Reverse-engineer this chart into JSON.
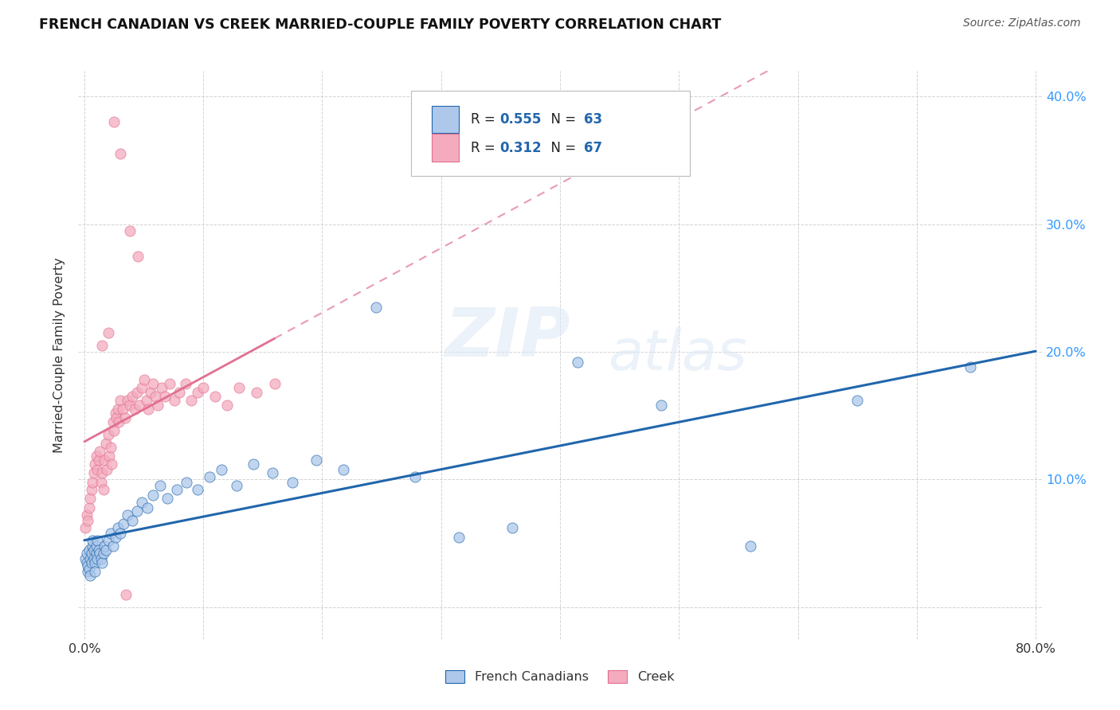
{
  "title": "FRENCH CANADIAN VS CREEK MARRIED-COUPLE FAMILY POVERTY CORRELATION CHART",
  "source": "Source: ZipAtlas.com",
  "ylabel": "Married-Couple Family Poverty",
  "watermark_zip": "ZIP",
  "watermark_atlas": "atlas",
  "xlim": [
    -0.005,
    0.805
  ],
  "ylim": [
    -0.025,
    0.42
  ],
  "french_R": 0.555,
  "french_N": 63,
  "creek_R": 0.312,
  "creek_N": 67,
  "french_color": "#adc8ea",
  "creek_color": "#f4abbe",
  "french_line_color": "#2166ac",
  "creek_line_color": "#e07090",
  "background_color": "#ffffff",
  "grid_color": "#c8c8c8",
  "french_scatter_x": [
    0.001,
    0.002,
    0.002,
    0.003,
    0.003,
    0.004,
    0.004,
    0.005,
    0.005,
    0.006,
    0.006,
    0.007,
    0.007,
    0.008,
    0.008,
    0.009,
    0.009,
    0.01,
    0.01,
    0.011,
    0.011,
    0.012,
    0.013,
    0.014,
    0.015,
    0.016,
    0.017,
    0.018,
    0.02,
    0.022,
    0.024,
    0.026,
    0.028,
    0.03,
    0.033,
    0.036,
    0.04,
    0.044,
    0.048,
    0.053,
    0.058,
    0.064,
    0.07,
    0.078,
    0.086,
    0.095,
    0.105,
    0.115,
    0.128,
    0.142,
    0.158,
    0.175,
    0.195,
    0.218,
    0.245,
    0.278,
    0.315,
    0.36,
    0.415,
    0.485,
    0.56,
    0.65,
    0.745
  ],
  "french_scatter_y": [
    0.038,
    0.042,
    0.035,
    0.028,
    0.032,
    0.03,
    0.045,
    0.025,
    0.038,
    0.042,
    0.035,
    0.048,
    0.052,
    0.045,
    0.038,
    0.035,
    0.028,
    0.042,
    0.048,
    0.038,
    0.052,
    0.045,
    0.042,
    0.038,
    0.035,
    0.042,
    0.048,
    0.045,
    0.052,
    0.058,
    0.048,
    0.055,
    0.062,
    0.058,
    0.065,
    0.072,
    0.068,
    0.075,
    0.082,
    0.078,
    0.088,
    0.095,
    0.085,
    0.092,
    0.098,
    0.092,
    0.102,
    0.108,
    0.095,
    0.112,
    0.105,
    0.098,
    0.115,
    0.108,
    0.235,
    0.102,
    0.055,
    0.062,
    0.192,
    0.158,
    0.048,
    0.162,
    0.188
  ],
  "creek_scatter_x": [
    0.001,
    0.002,
    0.003,
    0.004,
    0.005,
    0.006,
    0.007,
    0.008,
    0.009,
    0.01,
    0.011,
    0.012,
    0.013,
    0.014,
    0.015,
    0.016,
    0.017,
    0.018,
    0.019,
    0.02,
    0.021,
    0.022,
    0.023,
    0.024,
    0.025,
    0.026,
    0.027,
    0.028,
    0.029,
    0.03,
    0.032,
    0.034,
    0.036,
    0.038,
    0.04,
    0.042,
    0.044,
    0.046,
    0.048,
    0.05,
    0.052,
    0.054,
    0.056,
    0.058,
    0.06,
    0.062,
    0.065,
    0.068,
    0.072,
    0.076,
    0.08,
    0.085,
    0.09,
    0.095,
    0.1,
    0.11,
    0.12,
    0.13,
    0.145,
    0.16,
    0.045,
    0.038,
    0.03,
    0.025,
    0.02,
    0.035,
    0.015
  ],
  "creek_scatter_y": [
    0.062,
    0.072,
    0.068,
    0.078,
    0.085,
    0.092,
    0.098,
    0.105,
    0.112,
    0.118,
    0.108,
    0.115,
    0.122,
    0.098,
    0.105,
    0.092,
    0.115,
    0.128,
    0.108,
    0.135,
    0.118,
    0.125,
    0.112,
    0.145,
    0.138,
    0.152,
    0.148,
    0.155,
    0.145,
    0.162,
    0.155,
    0.148,
    0.162,
    0.158,
    0.165,
    0.155,
    0.168,
    0.158,
    0.172,
    0.178,
    0.162,
    0.155,
    0.168,
    0.175,
    0.165,
    0.158,
    0.172,
    0.165,
    0.175,
    0.162,
    0.168,
    0.175,
    0.162,
    0.168,
    0.172,
    0.165,
    0.158,
    0.172,
    0.168,
    0.175,
    0.275,
    0.295,
    0.355,
    0.38,
    0.215,
    0.01,
    0.205
  ]
}
